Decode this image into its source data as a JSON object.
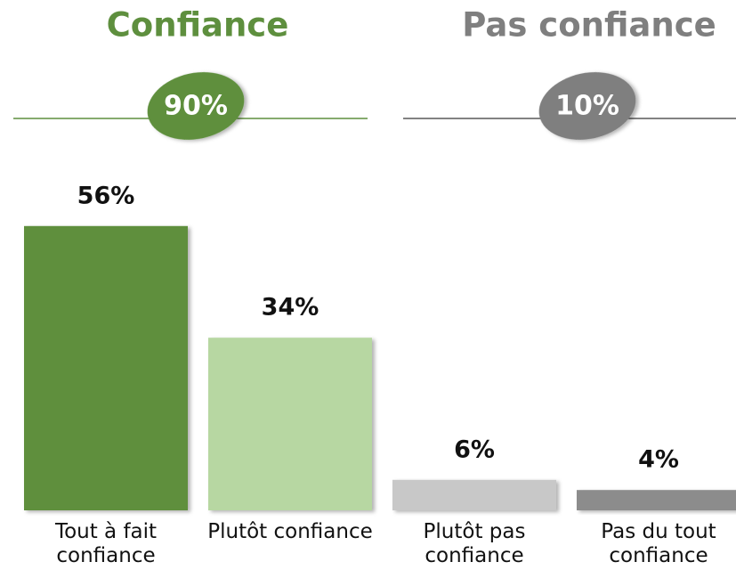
{
  "chart_data": {
    "type": "bar",
    "groups": [
      {
        "name": "Confiance",
        "value": 90,
        "value_label": "90%",
        "color": "#5e8f3e",
        "line_color": "#5e8f3e"
      },
      {
        "name": "Pas confiance",
        "value": 10,
        "value_label": "10%",
        "color": "#7f7f7f",
        "line_color": "#595959"
      }
    ],
    "categories": [
      "Tout à fait confiance",
      "Plutôt confiance",
      "Plutôt pas confiance",
      "Pas du tout confiance"
    ],
    "values": [
      56,
      34,
      6,
      4
    ],
    "value_labels": [
      "56%",
      "34%",
      "6%",
      "4%"
    ],
    "colors": [
      "#5e8f3e",
      "#b7d7a2",
      "#c8c8c8",
      "#8c8c8c"
    ]
  }
}
